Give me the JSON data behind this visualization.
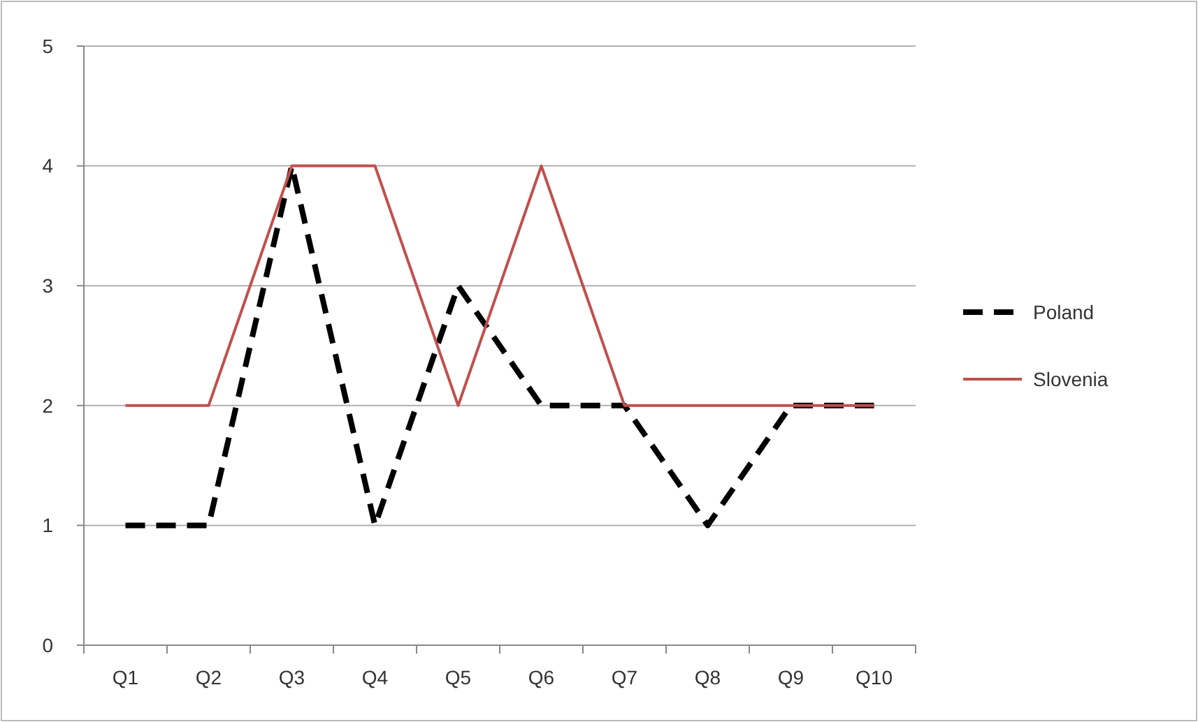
{
  "chart_data": {
    "type": "line",
    "categories": [
      "Q1",
      "Q2",
      "Q3",
      "Q4",
      "Q5",
      "Q6",
      "Q7",
      "Q8",
      "Q9",
      "Q10"
    ],
    "series": [
      {
        "name": "Poland",
        "color": "#000000",
        "values": [
          1,
          1,
          4,
          1,
          3,
          2,
          2,
          1,
          2,
          2
        ],
        "line_style": "dashed"
      },
      {
        "name": "Slovenia",
        "color": "#c0504d",
        "values": [
          2,
          2,
          4,
          4,
          2,
          4,
          2,
          2,
          2,
          2
        ],
        "line_style": "solid"
      }
    ],
    "ylim": [
      0,
      5
    ],
    "yticks": [
      0,
      1,
      2,
      3,
      4,
      5
    ],
    "grid": "y",
    "legend": "right",
    "marker": "none"
  }
}
